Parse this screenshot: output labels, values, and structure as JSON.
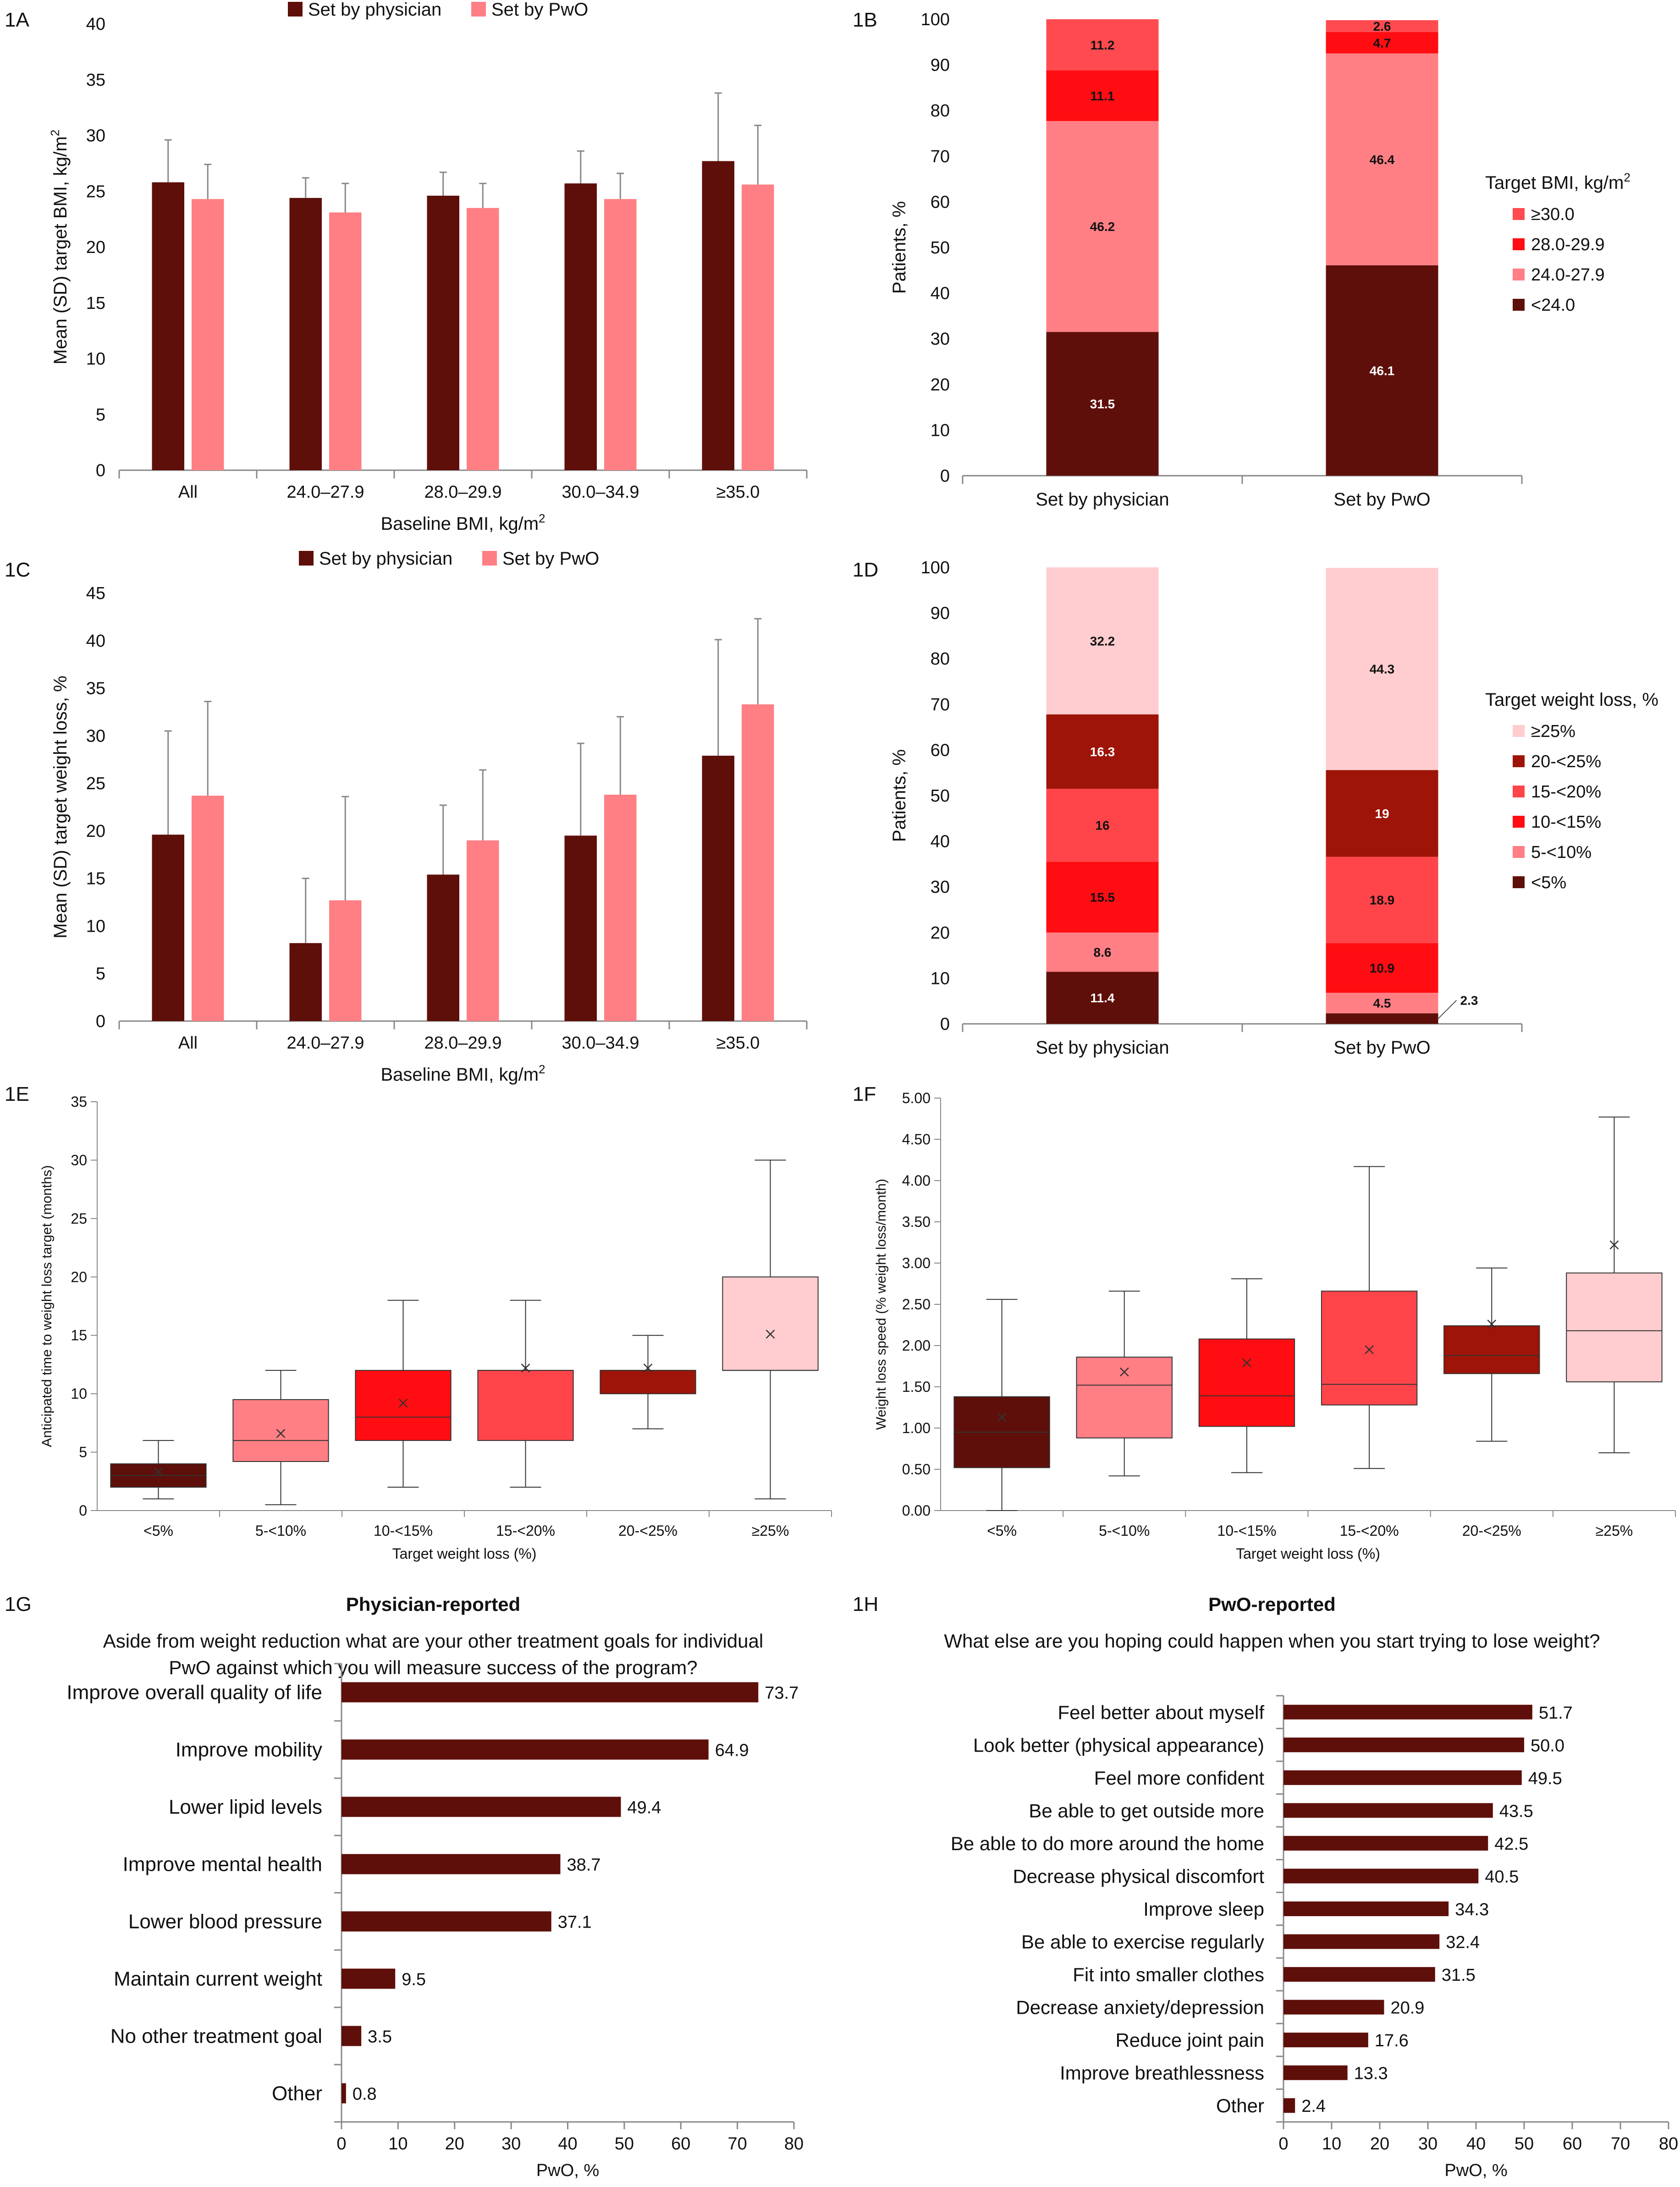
{
  "colors": {
    "physician": "#5e0f0a",
    "pwo": "#ff7f85",
    "bmi_ge30": "#ff4b50",
    "bmi_28": "#ff0d12",
    "bmi_24": "#ff7f85",
    "bmi_lt24": "#5e0f0a",
    "wl_ge25": "#ffcdcf",
    "wl_20": "#9e1408",
    "wl_15": "#ff454a",
    "wl_10": "#ff0d12",
    "wl_5": "#ff7f85",
    "wl_lt5": "#5e0f0a",
    "bar": "#5e0f0a",
    "axis": "#888888",
    "errorbar": "#888888"
  },
  "chart_data": [
    {
      "panel": "1A",
      "type": "bar",
      "legend": [
        "Set by physician",
        "Set by PwO"
      ],
      "categories": [
        "All",
        "24.0–27.9",
        "28.0–29.9",
        "30.0–34.9",
        "≥35.0"
      ],
      "series": [
        {
          "name": "Set by physician",
          "values": [
            25.8,
            24.4,
            24.6,
            25.7,
            27.7
          ],
          "sd": [
            3.8,
            1.8,
            2.1,
            2.9,
            6.1
          ]
        },
        {
          "name": "Set by PwO",
          "values": [
            24.3,
            23.1,
            23.5,
            24.3,
            25.6
          ],
          "sd": [
            3.1,
            2.6,
            2.2,
            2.3,
            5.3
          ]
        }
      ],
      "xlabel": "Baseline BMI, kg/m",
      "xlabel_sup": "2",
      "ylabel": "Mean (SD) target BMI, kg/m",
      "ylabel_sup": "2",
      "ylim": [
        0,
        40
      ],
      "yticks": [
        0,
        5,
        10,
        15,
        20,
        25,
        30,
        35,
        40
      ]
    },
    {
      "panel": "1B",
      "type": "bar",
      "stacked": true,
      "categories": [
        "Set by physician",
        "Set by PwO"
      ],
      "series": [
        {
          "name": "<24.0",
          "values": [
            31.5,
            46.1
          ]
        },
        {
          "name": "24.0-27.9",
          "values": [
            46.2,
            46.4
          ]
        },
        {
          "name": "28.0-29.9",
          "values": [
            11.1,
            4.7
          ]
        },
        {
          "name": "≥30.0",
          "values": [
            11.2,
            2.6
          ]
        }
      ],
      "legend_title": "Target BMI, kg/m",
      "legend_title_sup": "2",
      "legend_order": [
        "≥30.0",
        "28.0-29.9",
        "24.0-27.9",
        "<24.0"
      ],
      "ylabel": "Patients, %",
      "ylim": [
        0,
        100
      ],
      "yticks": [
        0,
        10,
        20,
        30,
        40,
        50,
        60,
        70,
        80,
        90,
        100
      ]
    },
    {
      "panel": "1C",
      "type": "bar",
      "legend": [
        "Set by physician",
        "Set by PwO"
      ],
      "categories": [
        "All",
        "24.0–27.9",
        "28.0–29.9",
        "30.0–34.9",
        "≥35.0"
      ],
      "series": [
        {
          "name": "Set by physician",
          "values": [
            19.6,
            8.2,
            15.4,
            19.5,
            27.9
          ],
          "sd": [
            10.9,
            6.8,
            7.3,
            9.7,
            12.2
          ]
        },
        {
          "name": "Set by PwO",
          "values": [
            23.7,
            12.7,
            19.0,
            23.8,
            33.3
          ],
          "sd": [
            9.9,
            10.9,
            7.4,
            8.2,
            9.0
          ]
        }
      ],
      "xlabel": "Baseline BMI, kg/m",
      "xlabel_sup": "2",
      "ylabel": "Mean (SD) target weight loss, %",
      "ylim": [
        0,
        45
      ],
      "yticks": [
        0,
        5,
        10,
        15,
        20,
        25,
        30,
        35,
        40,
        45
      ]
    },
    {
      "panel": "1D",
      "type": "bar",
      "stacked": true,
      "categories": [
        "Set by physician",
        "Set by PwO"
      ],
      "series": [
        {
          "name": "<5%",
          "values": [
            11.4,
            2.3
          ]
        },
        {
          "name": "5-<10%",
          "values": [
            8.6,
            4.5
          ]
        },
        {
          "name": "10-<15%",
          "values": [
            15.5,
            10.9
          ]
        },
        {
          "name": "15-<20%",
          "values": [
            16.0,
            18.9
          ]
        },
        {
          "name": "20-<25%",
          "values": [
            16.3,
            19.0
          ]
        },
        {
          "name": "≥25%",
          "values": [
            32.2,
            44.3
          ]
        }
      ],
      "legend_title": "Target weight loss, %",
      "legend_order": [
        "≥25%",
        "20-<25%",
        "15-<20%",
        "10-<15%",
        "5-<10%",
        "<5%"
      ],
      "ylabel": "Patients, %",
      "ylim": [
        0,
        100
      ],
      "yticks": [
        0,
        10,
        20,
        30,
        40,
        50,
        60,
        70,
        80,
        90,
        100
      ]
    },
    {
      "panel": "1E",
      "type": "box",
      "categories": [
        "<5%",
        "5-<10%",
        "10-<15%",
        "15-<20%",
        "20-<25%",
        "≥25%"
      ],
      "boxes": [
        {
          "min": 1,
          "q1": 2,
          "median": 3,
          "q3": 4,
          "max": 6,
          "mean": 3.3
        },
        {
          "min": 0.5,
          "q1": 4.2,
          "median": 6,
          "q3": 9.5,
          "max": 12,
          "mean": 6.6
        },
        {
          "min": 2,
          "q1": 6,
          "median": 8,
          "q3": 12,
          "max": 18,
          "mean": 9.2
        },
        {
          "min": 2,
          "q1": 6,
          "median": 12,
          "q3": 12,
          "max": 18,
          "mean": 12.2
        },
        {
          "min": 7,
          "q1": 10,
          "median": 12,
          "q3": 12,
          "max": 15,
          "mean": 12.2
        },
        {
          "min": 1,
          "q1": 12,
          "median": 12,
          "q3": 20,
          "max": 30,
          "mean": 15.1
        }
      ],
      "xlabel": "Target weight loss (%)",
      "ylabel": "Anticipated time to weight loss target (months)",
      "ylim": [
        0,
        35
      ],
      "yticks": [
        0,
        5,
        10,
        15,
        20,
        25,
        30,
        35
      ]
    },
    {
      "panel": "1F",
      "type": "box",
      "categories": [
        "<5%",
        "5-<10%",
        "10-<15%",
        "15-<20%",
        "20-<25%",
        "≥25%"
      ],
      "boxes": [
        {
          "min": 0.0,
          "q1": 0.52,
          "median": 0.95,
          "q3": 1.38,
          "max": 2.56,
          "mean": 1.13
        },
        {
          "min": 0.42,
          "q1": 0.88,
          "median": 1.52,
          "q3": 1.86,
          "max": 2.66,
          "mean": 1.68
        },
        {
          "min": 0.46,
          "q1": 1.02,
          "median": 1.39,
          "q3": 2.08,
          "max": 2.81,
          "mean": 1.79
        },
        {
          "min": 0.51,
          "q1": 1.28,
          "median": 1.53,
          "q3": 2.66,
          "max": 4.17,
          "mean": 1.95
        },
        {
          "min": 0.84,
          "q1": 1.66,
          "median": 1.88,
          "q3": 2.24,
          "max": 2.94,
          "mean": 2.26
        },
        {
          "min": 0.7,
          "q1": 1.56,
          "median": 2.18,
          "q3": 2.88,
          "max": 4.77,
          "mean": 3.22
        }
      ],
      "xlabel": "Target weight loss (%)",
      "ylabel": "Weight loss speed (% weight loss/month)",
      "ylim": [
        0,
        5
      ],
      "yticks": [
        "0.00",
        "0.50",
        "1.00",
        "1.50",
        "2.00",
        "2.50",
        "3.00",
        "3.50",
        "4.00",
        "4.50",
        "5.00"
      ]
    },
    {
      "panel": "1G",
      "type": "bar",
      "orientation": "horizontal",
      "title": "Physician-reported",
      "question": [
        "Aside from weight reduction what are your other treatment goals for individual",
        "PwO against which you will measure success of the program?"
      ],
      "categories": [
        "Improve overall quality of life",
        "Improve mobility",
        "Lower lipid levels",
        "Improve mental health",
        "Lower blood pressure",
        "Maintain current weight",
        "No other treatment goal",
        "Other"
      ],
      "values": [
        73.7,
        64.9,
        49.4,
        38.7,
        37.1,
        9.5,
        3.5,
        0.8
      ],
      "labels": [
        "73.7",
        "64.9",
        "49.4",
        "38.7",
        "37.1",
        "9.5",
        "3.5",
        "0.8"
      ],
      "xlabel": "PwO, %",
      "xlim": [
        0,
        80
      ],
      "xticks": [
        0,
        10,
        20,
        30,
        40,
        50,
        60,
        70,
        80
      ]
    },
    {
      "panel": "1H",
      "type": "bar",
      "orientation": "horizontal",
      "title": "PwO-reported",
      "question": [
        "What else are you hoping could happen when you start trying to lose weight?"
      ],
      "categories": [
        "Feel better about myself",
        "Look better (physical appearance)",
        "Feel more confident",
        "Be able to get outside more",
        "Be able to do more around the home",
        "Decrease physical discomfort",
        "Improve sleep",
        "Be able to exercise regularly",
        "Fit into smaller clothes",
        "Decrease anxiety/depression",
        "Reduce joint pain",
        "Improve breathlessness",
        "Other"
      ],
      "values": [
        51.7,
        50.0,
        49.5,
        43.5,
        42.5,
        40.5,
        34.3,
        32.4,
        31.5,
        20.9,
        17.6,
        13.3,
        2.4
      ],
      "labels": [
        "51.7",
        "50.0",
        "49.5",
        "43.5",
        "42.5",
        "40.5",
        "34.3",
        "32.4",
        "31.5",
        "20.9",
        "17.6",
        "13.3",
        "2.4"
      ],
      "xlabel": "PwO, %",
      "xlim": [
        0,
        80
      ],
      "xticks": [
        0,
        10,
        20,
        30,
        40,
        50,
        60,
        70,
        80
      ]
    }
  ],
  "label_formats": {
    "1B": [
      "31.5",
      "46.2",
      "11.1",
      "11.2",
      "46.1",
      "46.4",
      "4.7",
      "2.6"
    ],
    "1D": [
      "11.4",
      "8.6",
      "15.5",
      "16.0",
      "16.3",
      "32.2",
      "2.3",
      "4.5",
      "10.9",
      "18.9",
      "19.0",
      "44.3"
    ]
  }
}
